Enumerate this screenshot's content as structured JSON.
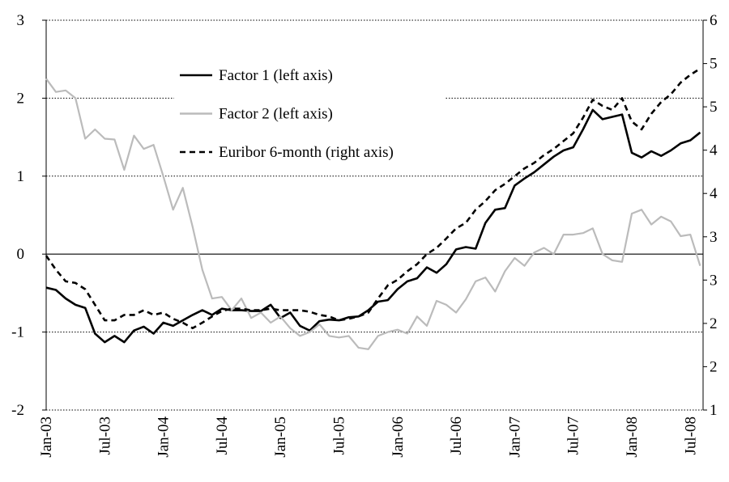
{
  "chart_data": {
    "type": "line",
    "categories": [
      "Jan-03",
      null,
      null,
      null,
      null,
      null,
      "Jul-03",
      null,
      null,
      null,
      null,
      null,
      "Jan-04",
      null,
      null,
      null,
      null,
      null,
      "Jul-04",
      null,
      null,
      null,
      null,
      null,
      "Jan-05",
      null,
      null,
      null,
      null,
      null,
      "Jul-05",
      null,
      null,
      null,
      null,
      null,
      "Jan-06",
      null,
      null,
      null,
      null,
      null,
      "Jul-06",
      null,
      null,
      null,
      null,
      null,
      "Jan-07",
      null,
      null,
      null,
      null,
      null,
      "Jul-07",
      null,
      null,
      null,
      null,
      null,
      "Jan-08",
      null,
      null,
      null,
      null,
      null,
      "Jul-08",
      null
    ],
    "series": [
      {
        "name": "Factor 1 (left axis)",
        "color": "#000000",
        "axis": "y",
        "values": [
          -0.43,
          -0.46,
          -0.57,
          -0.65,
          -0.69,
          -1.02,
          -1.13,
          -1.05,
          -1.13,
          -0.98,
          -0.93,
          -1.02,
          -0.88,
          -0.92,
          -0.85,
          -0.78,
          -0.72,
          -0.78,
          -0.7,
          -0.72,
          -0.72,
          -0.73,
          -0.73,
          -0.65,
          -0.82,
          -0.75,
          -0.92,
          -0.98,
          -0.86,
          -0.84,
          -0.85,
          -0.81,
          -0.8,
          -0.72,
          -0.61,
          -0.59,
          -0.45,
          -0.35,
          -0.31,
          -0.17,
          -0.24,
          -0.13,
          0.06,
          0.09,
          0.07,
          0.4,
          0.57,
          0.59,
          0.88,
          0.97,
          1.05,
          1.15,
          1.25,
          1.33,
          1.37,
          1.6,
          1.85,
          1.73,
          1.76,
          1.79,
          1.3,
          1.24,
          1.32,
          1.26,
          1.33,
          1.42,
          1.46,
          1.56
        ]
      },
      {
        "name": "Factor 2 (left axis)",
        "color": "#bbbbbb",
        "axis": "y",
        "values": [
          2.25,
          2.08,
          2.1,
          2.0,
          1.48,
          1.6,
          1.48,
          1.47,
          1.08,
          1.52,
          1.35,
          1.4,
          1.0,
          0.57,
          0.85,
          0.35,
          -0.2,
          -0.57,
          -0.55,
          -0.72,
          -0.57,
          -0.82,
          -0.75,
          -0.88,
          -0.8,
          -0.95,
          -1.05,
          -1.0,
          -0.9,
          -1.05,
          -1.07,
          -1.05,
          -1.2,
          -1.22,
          -1.05,
          -1.0,
          -0.97,
          -1.02,
          -0.8,
          -0.92,
          -0.6,
          -0.65,
          -0.75,
          -0.58,
          -0.35,
          -0.3,
          -0.48,
          -0.22,
          -0.05,
          -0.15,
          0.02,
          0.08,
          0.0,
          0.25,
          0.25,
          0.27,
          0.33,
          0.0,
          -0.08,
          -0.1,
          0.52,
          0.57,
          0.38,
          0.48,
          0.42,
          0.23,
          0.25,
          -0.15
        ]
      },
      {
        "name": "Euribor 6-month  (right axis)",
        "color": "#000000",
        "dashed": true,
        "axis": "y2",
        "values": [
          2.98,
          2.8,
          2.65,
          2.63,
          2.55,
          2.35,
          2.15,
          2.15,
          2.22,
          2.22,
          2.28,
          2.22,
          2.25,
          2.17,
          2.12,
          2.05,
          2.12,
          2.2,
          2.27,
          2.3,
          2.3,
          2.28,
          2.28,
          2.3,
          2.28,
          2.28,
          2.28,
          2.26,
          2.22,
          2.2,
          2.15,
          2.17,
          2.2,
          2.25,
          2.43,
          2.6,
          2.67,
          2.78,
          2.87,
          3.0,
          3.08,
          3.2,
          3.33,
          3.4,
          3.57,
          3.68,
          3.82,
          3.9,
          4.0,
          4.1,
          4.17,
          4.27,
          4.35,
          4.45,
          4.55,
          4.75,
          4.98,
          4.9,
          4.85,
          5.0,
          4.7,
          4.6,
          4.8,
          4.95,
          5.05,
          5.2,
          5.3,
          5.38
        ]
      }
    ],
    "ylim": [
      -2,
      3
    ],
    "yticks": [
      -2,
      -1,
      0,
      1,
      2,
      3
    ],
    "y2lim": [
      1,
      6
    ],
    "y2ticks": [
      1,
      {
        "value": 1.556,
        "label": "2"
      },
      {
        "value": 2.111,
        "label": "2"
      },
      {
        "value": 2.667,
        "label": "3"
      },
      {
        "value": 3.222,
        "label": "3"
      },
      {
        "value": 3.778,
        "label": "4"
      },
      {
        "value": 4.333,
        "label": "4"
      },
      {
        "value": 4.889,
        "label": "5"
      },
      {
        "value": 5.444,
        "label": "5"
      },
      6
    ],
    "grid": true,
    "legend": "upper left"
  }
}
